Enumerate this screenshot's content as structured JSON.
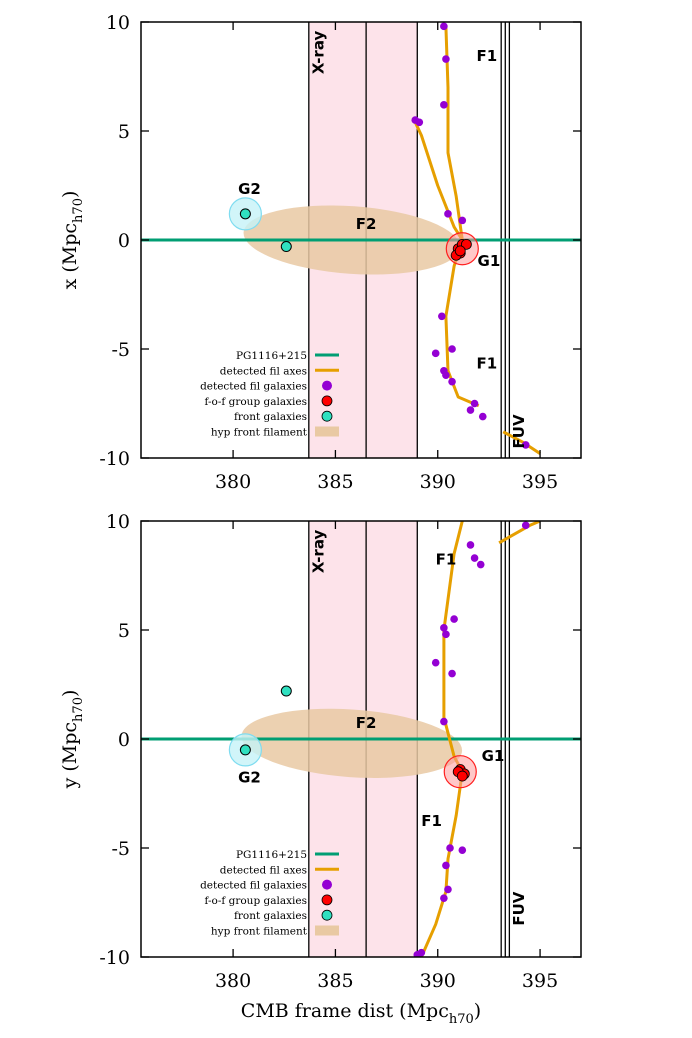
{
  "chart_data": [
    {
      "type": "scatter",
      "ylabel_main": "x (Mpc",
      "ylabel_sub": "h70",
      "ylabel_close": ")",
      "xlim": [
        375.5,
        397
      ],
      "ylim": [
        -10,
        10
      ],
      "xticks": [
        "380",
        "385",
        "390",
        "395"
      ],
      "yticks": [
        "10",
        "5",
        "0",
        "-5",
        "-10"
      ],
      "bands": [
        {
          "x0": 383.7,
          "x1": 389.0,
          "color": "#fde3ea"
        }
      ],
      "vlines": [
        383.7,
        386.5,
        389.0,
        393.1,
        393.3,
        393.5
      ],
      "sightline_y": 0,
      "filament_axes": [
        [
          [
            388.8,
            5.6
          ],
          [
            389.2,
            4.8
          ],
          [
            390.0,
            2.5
          ],
          [
            390.8,
            0.6
          ],
          [
            391.2,
            0.0
          ]
        ],
        [
          [
            391.2,
            0.0
          ],
          [
            390.8,
            -1.2
          ],
          [
            390.4,
            -3.5
          ],
          [
            390.5,
            -6.0
          ],
          [
            391.0,
            -7.2
          ],
          [
            392.0,
            -7.6
          ]
        ],
        [
          [
            390.4,
            9.8
          ],
          [
            390.5,
            7.0
          ],
          [
            390.5,
            4.0
          ],
          [
            390.9,
            2.0
          ],
          [
            391.2,
            0.0
          ]
        ],
        [
          [
            393.2,
            -8.8
          ],
          [
            394.2,
            -9.3
          ],
          [
            395.0,
            -9.8
          ]
        ]
      ],
      "fil_galaxies": [
        [
          390.3,
          9.8
        ],
        [
          390.4,
          8.3
        ],
        [
          390.3,
          6.2
        ],
        [
          388.9,
          5.5
        ],
        [
          389.1,
          5.4
        ],
        [
          390.5,
          1.2
        ],
        [
          391.2,
          0.9
        ],
        [
          390.2,
          -3.5
        ],
        [
          390.7,
          -5.0
        ],
        [
          389.9,
          -5.2
        ],
        [
          390.3,
          -6.0
        ],
        [
          390.4,
          -6.2
        ],
        [
          390.7,
          -6.5
        ],
        [
          391.8,
          -7.5
        ],
        [
          391.6,
          -7.8
        ],
        [
          392.2,
          -8.1
        ],
        [
          394.3,
          -9.4
        ]
      ],
      "group_galaxies": [
        [
          391.0,
          -0.4
        ],
        [
          391.2,
          -0.2
        ],
        [
          391.1,
          -0.6
        ],
        [
          390.9,
          -0.7
        ],
        [
          391.4,
          -0.2
        ],
        [
          391.1,
          -0.5
        ]
      ],
      "front_galaxies": [
        [
          380.6,
          1.2
        ],
        [
          382.6,
          -0.3
        ]
      ],
      "group_halo": {
        "x": 391.2,
        "y": -0.4
      },
      "front_halo": {
        "x": 380.6,
        "y": 1.2
      },
      "hyp_filament": {
        "cx": 385.8,
        "cy": 0.0,
        "rx": 5.3,
        "ry": 1.55
      },
      "annotations": [
        {
          "text": "X-ray",
          "x": 384.2,
          "y": 9.6,
          "rotate": true
        },
        {
          "text": "F1",
          "x": 392.4,
          "y": 8.2
        },
        {
          "text": "G2",
          "x": 380.8,
          "y": 2.1
        },
        {
          "text": "F2",
          "x": 386.5,
          "y": 0.5
        },
        {
          "text": "G1",
          "x": 392.5,
          "y": -1.2
        },
        {
          "text": "F1",
          "x": 392.4,
          "y": -5.9
        },
        {
          "text": "FUV",
          "x": 394.0,
          "y": -8.0,
          "rotate": true
        }
      ],
      "legend": [
        {
          "label": "PG1116+215",
          "kind": "line",
          "color": "#009e73"
        },
        {
          "label": "detected fil axes",
          "kind": "line",
          "color": "#e69f00"
        },
        {
          "label": "detected fil galaxies",
          "kind": "dot",
          "color": "#9400d3"
        },
        {
          "label": "f-o-f group galaxies",
          "kind": "dot",
          "color": "#ff0000"
        },
        {
          "label": "front galaxies",
          "kind": "dot",
          "color": "#30e0c0"
        },
        {
          "label": "hyp front filament",
          "kind": "box",
          "color": "#e9c9a3"
        }
      ]
    },
    {
      "type": "scatter",
      "ylabel_main": "y (Mpc",
      "ylabel_sub": "h70",
      "ylabel_close": ")",
      "xlabel_main": "CMB frame dist (Mpc",
      "xlabel_sub": "h70",
      "xlabel_close": ")",
      "xlim": [
        375.5,
        397
      ],
      "ylim": [
        -10,
        10
      ],
      "xticks": [
        "380",
        "385",
        "390",
        "395"
      ],
      "yticks": [
        "10",
        "5",
        "0",
        "-5",
        "-10"
      ],
      "bands": [
        {
          "x0": 383.7,
          "x1": 389.0,
          "color": "#fde3ea"
        }
      ],
      "vlines": [
        383.7,
        386.5,
        389.0,
        393.1,
        393.3,
        393.5
      ],
      "sightline_y": 0,
      "filament_axes": [
        [
          [
            391.2,
            10.0
          ],
          [
            390.8,
            8.5
          ],
          [
            390.3,
            5.0
          ],
          [
            390.3,
            1.0
          ],
          [
            390.8,
            -0.8
          ],
          [
            391.2,
            -1.5
          ]
        ],
        [
          [
            391.2,
            -1.5
          ],
          [
            390.9,
            -3.5
          ],
          [
            390.5,
            -5.5
          ],
          [
            390.4,
            -7.0
          ],
          [
            389.9,
            -8.5
          ],
          [
            389.2,
            -10.0
          ]
        ],
        [
          [
            393.0,
            9.0
          ],
          [
            394.5,
            9.8
          ],
          [
            395.0,
            10.0
          ]
        ]
      ],
      "fil_galaxies": [
        [
          394.3,
          9.8
        ],
        [
          391.6,
          8.9
        ],
        [
          391.8,
          8.3
        ],
        [
          392.1,
          8.0
        ],
        [
          390.8,
          5.5
        ],
        [
          390.3,
          5.1
        ],
        [
          390.4,
          4.8
        ],
        [
          389.9,
          3.5
        ],
        [
          390.7,
          3.0
        ],
        [
          390.3,
          0.8
        ],
        [
          390.6,
          -5.0
        ],
        [
          391.2,
          -5.1
        ],
        [
          390.4,
          -5.8
        ],
        [
          390.5,
          -6.9
        ],
        [
          390.3,
          -7.3
        ],
        [
          389.2,
          -9.8
        ],
        [
          389.0,
          -9.9
        ]
      ],
      "group_galaxies": [
        [
          391.1,
          -1.4
        ],
        [
          391.3,
          -1.6
        ],
        [
          391.0,
          -1.5
        ],
        [
          391.2,
          -1.7
        ]
      ],
      "front_galaxies": [
        [
          380.6,
          -0.5
        ],
        [
          382.6,
          2.2
        ]
      ],
      "group_halo": {
        "x": 391.1,
        "y": -1.5
      },
      "front_halo": {
        "x": 380.6,
        "y": -0.5
      },
      "hyp_filament": {
        "cx": 385.8,
        "cy": -0.2,
        "rx": 5.4,
        "ry": 1.55
      },
      "annotations": [
        {
          "text": "X-ray",
          "x": 384.2,
          "y": 9.6,
          "rotate": true
        },
        {
          "text": "F1",
          "x": 390.4,
          "y": 8.0
        },
        {
          "text": "F2",
          "x": 386.5,
          "y": 0.5
        },
        {
          "text": "G1",
          "x": 392.7,
          "y": -1.0
        },
        {
          "text": "G2",
          "x": 380.8,
          "y": -2.0
        },
        {
          "text": "F1",
          "x": 389.7,
          "y": -4.0
        },
        {
          "text": "FUV",
          "x": 394.0,
          "y": -7.0,
          "rotate": true
        }
      ],
      "legend": [
        {
          "label": "PG1116+215",
          "kind": "line",
          "color": "#009e73"
        },
        {
          "label": "detected fil axes",
          "kind": "line",
          "color": "#e69f00"
        },
        {
          "label": "detected fil galaxies",
          "kind": "dot",
          "color": "#9400d3"
        },
        {
          "label": "f-o-f group galaxies",
          "kind": "dot",
          "color": "#ff0000"
        },
        {
          "label": "front galaxies",
          "kind": "dot",
          "color": "#30e0c0"
        },
        {
          "label": "hyp front filament",
          "kind": "box",
          "color": "#e9c9a3"
        }
      ]
    }
  ]
}
